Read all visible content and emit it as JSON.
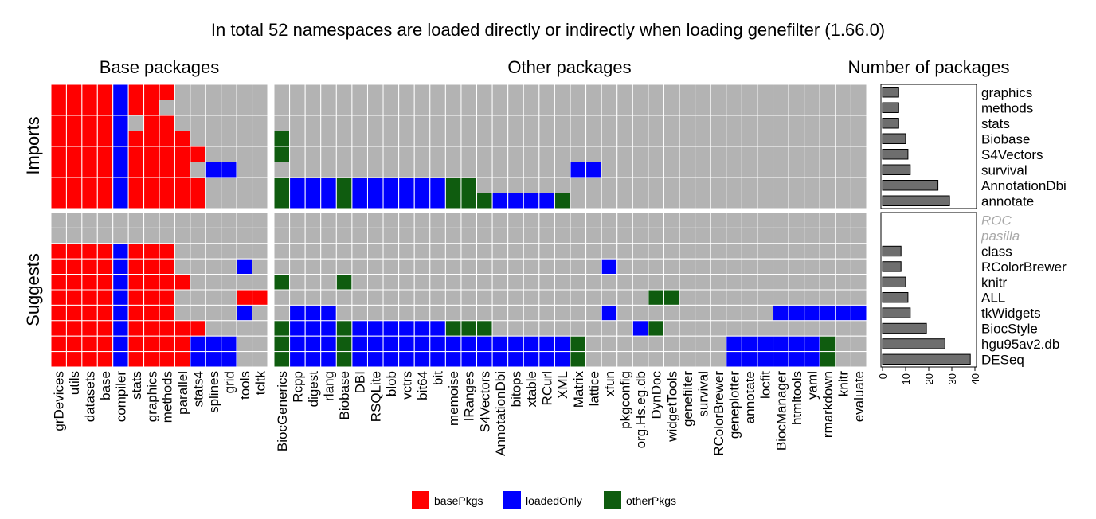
{
  "chart_data": {
    "type": "heatmap",
    "title": "In total 52 namespaces are loaded directly or indirectly when loading genefilter (1.66.0)",
    "panels": [
      {
        "name": "Base packages",
        "columns": [
          "grDevices",
          "utils",
          "datasets",
          "base",
          "compiler",
          "stats",
          "graphics",
          "methods",
          "parallel",
          "stats4",
          "splines",
          "grid",
          "tools",
          "tcltk"
        ]
      },
      {
        "name": "Other packages",
        "columns": [
          "BiocGenerics",
          "Rcpp",
          "digest",
          "rlang",
          "Biobase",
          "DBI",
          "RSQLite",
          "blob",
          "vctrs",
          "bit64",
          "bit",
          "memoise",
          "IRanges",
          "S4Vectors",
          "AnnotationDbi",
          "bitops",
          "xtable",
          "RCurl",
          "XML",
          "Matrix",
          "lattice",
          "xfun",
          "pkgconfig",
          "org.Hs.eg.db",
          "DynDoc",
          "widgetTools",
          "genefilter",
          "survival",
          "RColorBrewer",
          "geneplotter",
          "annotate",
          "locfit",
          "BiocManager",
          "htmltools",
          "yaml",
          "rmarkdown",
          "knitr",
          "evaluate"
        ]
      }
    ],
    "bar_panel_title": "Number of packages",
    "groups": [
      {
        "name": "Imports",
        "rows": [
          {
            "label": "graphics",
            "count": 7,
            "available": true,
            "base": "bbbbcbbb......",
            "other": "......................................"
          },
          {
            "label": "methods",
            "count": 7,
            "available": true,
            "base": "bbbbcbb.......",
            "other": "......................................"
          },
          {
            "label": "stats",
            "count": 7,
            "available": true,
            "base": "bbbbc.bb......",
            "other": "......................................"
          },
          {
            "label": "Biobase",
            "count": 10,
            "available": true,
            "base": "bbbbcbbbb.....",
            "other": "o....................................."
          },
          {
            "label": "S4Vectors",
            "count": 11,
            "available": true,
            "base": "bbbbcbbbbb....",
            "other": "o....................................."
          },
          {
            "label": "survival",
            "count": 12,
            "available": true,
            "base": "bbbbcbbbb.cc..",
            "other": "...................cc................."
          },
          {
            "label": "AnnotationDbi",
            "count": 24,
            "available": true,
            "base": "bbbbcbbbbb....",
            "other": "occcoccccccoo........................."
          },
          {
            "label": "annotate",
            "count": 29,
            "available": true,
            "base": "bbbbcbbbbb....",
            "other": "occcoccccccooocccco..................."
          }
        ]
      },
      {
        "name": "Suggests",
        "rows": [
          {
            "label": "ROC",
            "count": 0,
            "available": false,
            "base": "..............",
            "other": "......................................"
          },
          {
            "label": "pasilla",
            "count": 0,
            "available": false,
            "base": "..............",
            "other": "......................................"
          },
          {
            "label": "class",
            "count": 8,
            "available": true,
            "base": "bbbbcbbb......",
            "other": "......................................"
          },
          {
            "label": "RColorBrewer",
            "count": 8,
            "available": true,
            "base": "bbbbcbbb....c.",
            "other": ".....................c................"
          },
          {
            "label": "knitr",
            "count": 10,
            "available": true,
            "base": "bbbbcbbbb.....",
            "other": "o...o................................."
          },
          {
            "label": "ALL",
            "count": 11,
            "available": true,
            "base": "bbbbcbbb....bb",
            "other": "........................oo............"
          },
          {
            "label": "tkWidgets",
            "count": 12,
            "available": true,
            "base": "bbbbcbbb....c.",
            "other": ".ccc.................c..........cccccc"
          },
          {
            "label": "BiocStyle",
            "count": 19,
            "available": true,
            "base": "bbbbcbbbbb....",
            "other": "occcoccccccooo.........co............."
          },
          {
            "label": "hgu95av2.db",
            "count": 27,
            "available": true,
            "base": "bbbbcbbbbccc..",
            "other": "occcocccccccccccccco.........cccccco.."
          },
          {
            "label": "DESeq",
            "count": 38,
            "available": true,
            "base": "bbbbcbbbbccc..",
            "other": "occcocccccccccccccco.........cccccco.."
          }
        ]
      }
    ],
    "x_axis": {
      "ticks": [
        0,
        10,
        20,
        30,
        40
      ],
      "xlim": [
        0,
        40
      ]
    },
    "legend": [
      {
        "code": "b",
        "label": "basePkgs",
        "color": "#ff0000"
      },
      {
        "code": "c",
        "label": "loadedOnly",
        "color": "#0000ff"
      },
      {
        "code": "o",
        "label": "otherPkgs",
        "color": "#0f5c0f"
      }
    ],
    "legend_position": "bottom",
    "empty_cell_color": "#b3b3b3",
    "bar_color": "#6e6e6e"
  }
}
